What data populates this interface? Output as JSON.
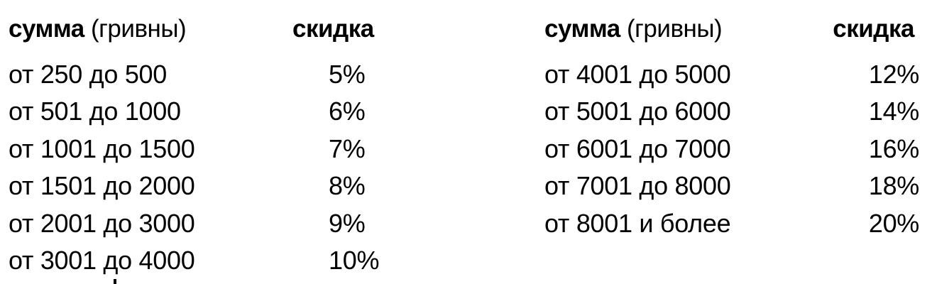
{
  "left_table": {
    "header": {
      "sum_label": "сумма",
      "sum_unit": "(гривны)",
      "discount_label": "скидка"
    },
    "rows": [
      {
        "range": "от 250 до 500",
        "discount": "5%"
      },
      {
        "range": "от 501 до 1000",
        "discount": "6%"
      },
      {
        "range": "от 1001 до 1500",
        "discount": "7%"
      },
      {
        "range": "от 1501 до 2000",
        "discount": "8%"
      },
      {
        "range": "от 2001 до 3000",
        "discount": "9%"
      },
      {
        "range": "от 3001 до 4000",
        "discount": "10%"
      }
    ]
  },
  "right_table": {
    "header": {
      "sum_label": "сумма",
      "sum_unit": "(гривны)",
      "discount_label": "скидка"
    },
    "rows": [
      {
        "range": "от 4001 до 5000",
        "discount": "12%"
      },
      {
        "range": "от 5001 до 6000",
        "discount": "14%"
      },
      {
        "range": "от 6001 до 7000",
        "discount": "16%"
      },
      {
        "range": "от 7001 до 8000",
        "discount": "18%"
      },
      {
        "range": "от 8001 и более",
        "discount": "20%"
      }
    ]
  }
}
